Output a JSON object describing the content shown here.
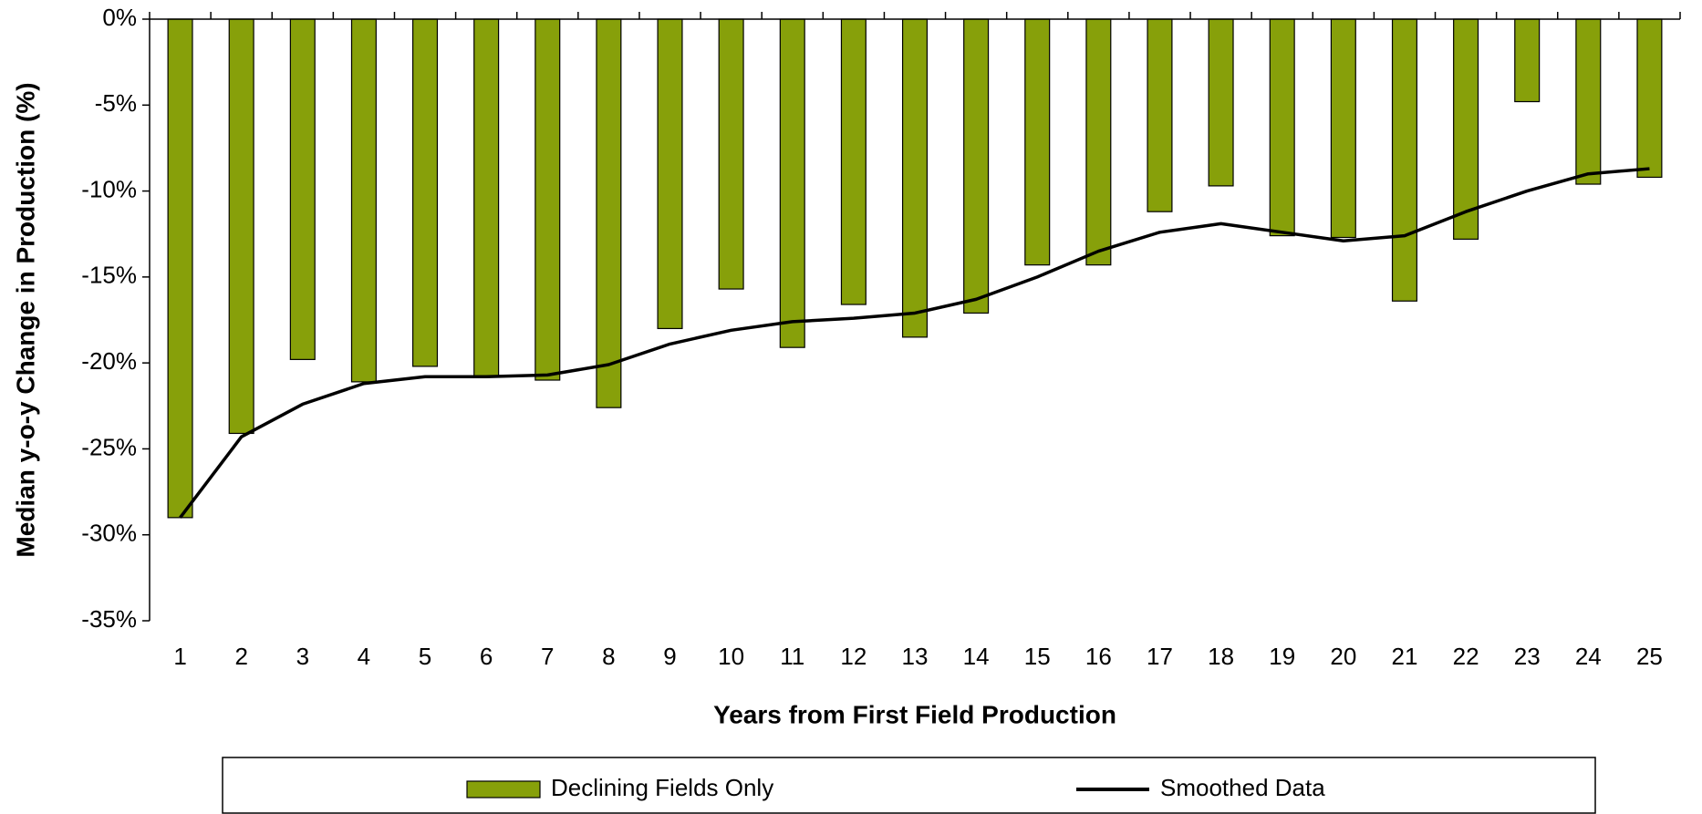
{
  "chart_data": {
    "type": "bar",
    "x_label": "Years from First Field Production",
    "y_label": "Median y-o-y Change in Production (%)",
    "categories": [
      "1",
      "2",
      "3",
      "4",
      "5",
      "6",
      "7",
      "8",
      "9",
      "10",
      "11",
      "12",
      "13",
      "14",
      "15",
      "16",
      "17",
      "18",
      "19",
      "20",
      "21",
      "22",
      "23",
      "24",
      "25"
    ],
    "series": [
      {
        "name": "Declining Fields Only",
        "type": "bar",
        "color": "#87a00a",
        "values": [
          -29.0,
          -24.1,
          -19.8,
          -21.1,
          -20.2,
          -20.8,
          -21.0,
          -22.6,
          -18.0,
          -15.7,
          -19.1,
          -16.6,
          -18.5,
          -17.1,
          -14.3,
          -14.3,
          -11.2,
          -9.7,
          -12.6,
          -12.7,
          -16.4,
          -12.8,
          -4.8,
          -9.6,
          -9.2
        ]
      },
      {
        "name": "Smoothed Data",
        "type": "line",
        "color": "#000000",
        "values": [
          -29.0,
          -24.3,
          -22.4,
          -21.2,
          -20.8,
          -20.8,
          -20.7,
          -20.1,
          -18.9,
          -18.1,
          -17.6,
          -17.4,
          -17.1,
          -16.3,
          -15.0,
          -13.5,
          -12.4,
          -11.9,
          -12.4,
          -12.9,
          -12.6,
          -11.2,
          -10.0,
          -9.0,
          -8.7
        ]
      }
    ],
    "ylim": [
      -35,
      0
    ],
    "yticks": [
      {
        "value": 0,
        "label": "0%"
      },
      {
        "value": -5,
        "label": "-5%"
      },
      {
        "value": -10,
        "label": "-10%"
      },
      {
        "value": -15,
        "label": "-15%"
      },
      {
        "value": -20,
        "label": "-20%"
      },
      {
        "value": -25,
        "label": "-25%"
      },
      {
        "value": -30,
        "label": "-30%"
      },
      {
        "value": -35,
        "label": "-35%"
      }
    ],
    "grid": false,
    "legend": "bottom"
  }
}
